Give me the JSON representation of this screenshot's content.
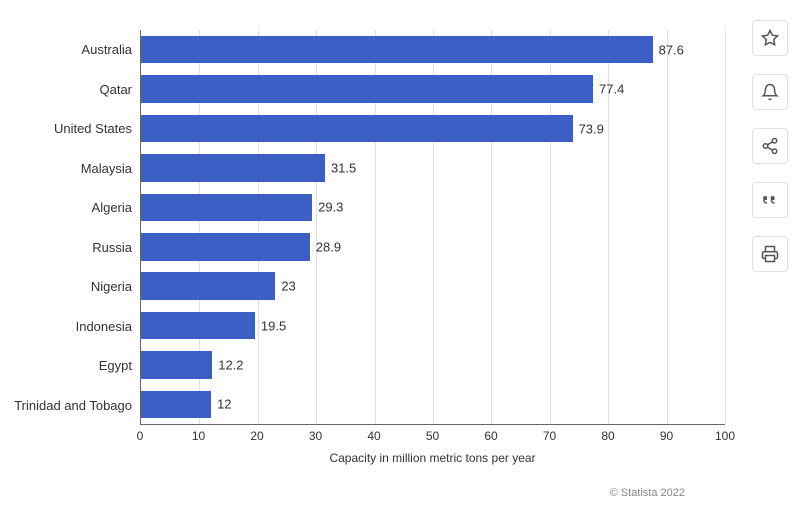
{
  "chart": {
    "type": "bar-horizontal",
    "categories": [
      "Australia",
      "Qatar",
      "United States",
      "Malaysia",
      "Algeria",
      "Russia",
      "Nigeria",
      "Indonesia",
      "Egypt",
      "Trinidad and Tobago"
    ],
    "values": [
      87.6,
      77.4,
      73.9,
      31.5,
      29.3,
      28.9,
      23,
      19.5,
      12.2,
      12
    ],
    "bar_color": "#3b5fc4",
    "xlabel": "Capacity in million metric tons per year",
    "xlim": [
      0,
      100
    ],
    "xtick_step": 10,
    "xticks": [
      0,
      10,
      20,
      30,
      40,
      50,
      60,
      70,
      80,
      90,
      100
    ],
    "grid_color": "#e0e0e0",
    "axis_color": "#666666",
    "background_color": "#ffffff",
    "label_fontsize": 13,
    "tick_fontsize": 12,
    "xlabel_fontsize": 12,
    "value_fontsize": 13,
    "bar_height_ratio": 0.7
  },
  "attribution": "© Statista 2022",
  "tools": {
    "favorite": "star-icon",
    "notify": "bell-icon",
    "share": "share-icon",
    "cite": "quote-icon",
    "print": "print-icon"
  }
}
